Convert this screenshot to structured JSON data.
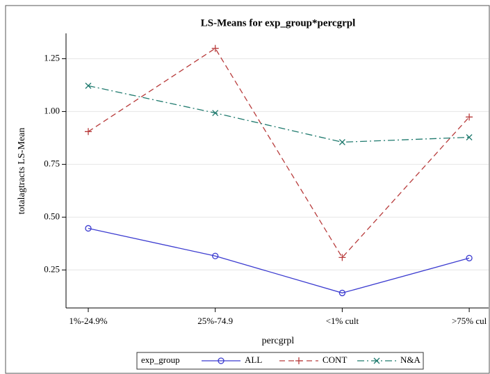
{
  "chart_data": {
    "type": "line",
    "title": "LS-Means for exp_group*percgrpl",
    "x_label": "percgrpl",
    "y_label": "totalagtracts LS-Mean",
    "categories": [
      "1%-24.9%",
      "25%-74.9",
      "<1% cult",
      ">75% cul"
    ],
    "ylim": [
      0.07,
      1.37
    ],
    "yticks": [
      0.25,
      {
        "value": 0.5,
        "label": "0.50"
      },
      0.75,
      {
        "value": 1,
        "label": "1.00"
      },
      1.25
    ],
    "grid": true,
    "legend_title": "exp_group",
    "legend": "bottom",
    "series": [
      {
        "name": "ALL",
        "color": "#3b3bd0",
        "dash": "solid",
        "marker": "circle",
        "values": [
          0.447,
          0.316,
          0.141,
          0.306
        ]
      },
      {
        "name": "CONT",
        "color": "#b83c3c",
        "dash": "dash",
        "marker": "plus",
        "values": [
          0.905,
          1.299,
          0.309,
          0.974
        ]
      },
      {
        "name": "N&A",
        "color": "#1f7a6e",
        "dash": "dashdot",
        "marker": "x",
        "values": [
          1.122,
          0.993,
          0.855,
          0.878
        ]
      }
    ]
  }
}
